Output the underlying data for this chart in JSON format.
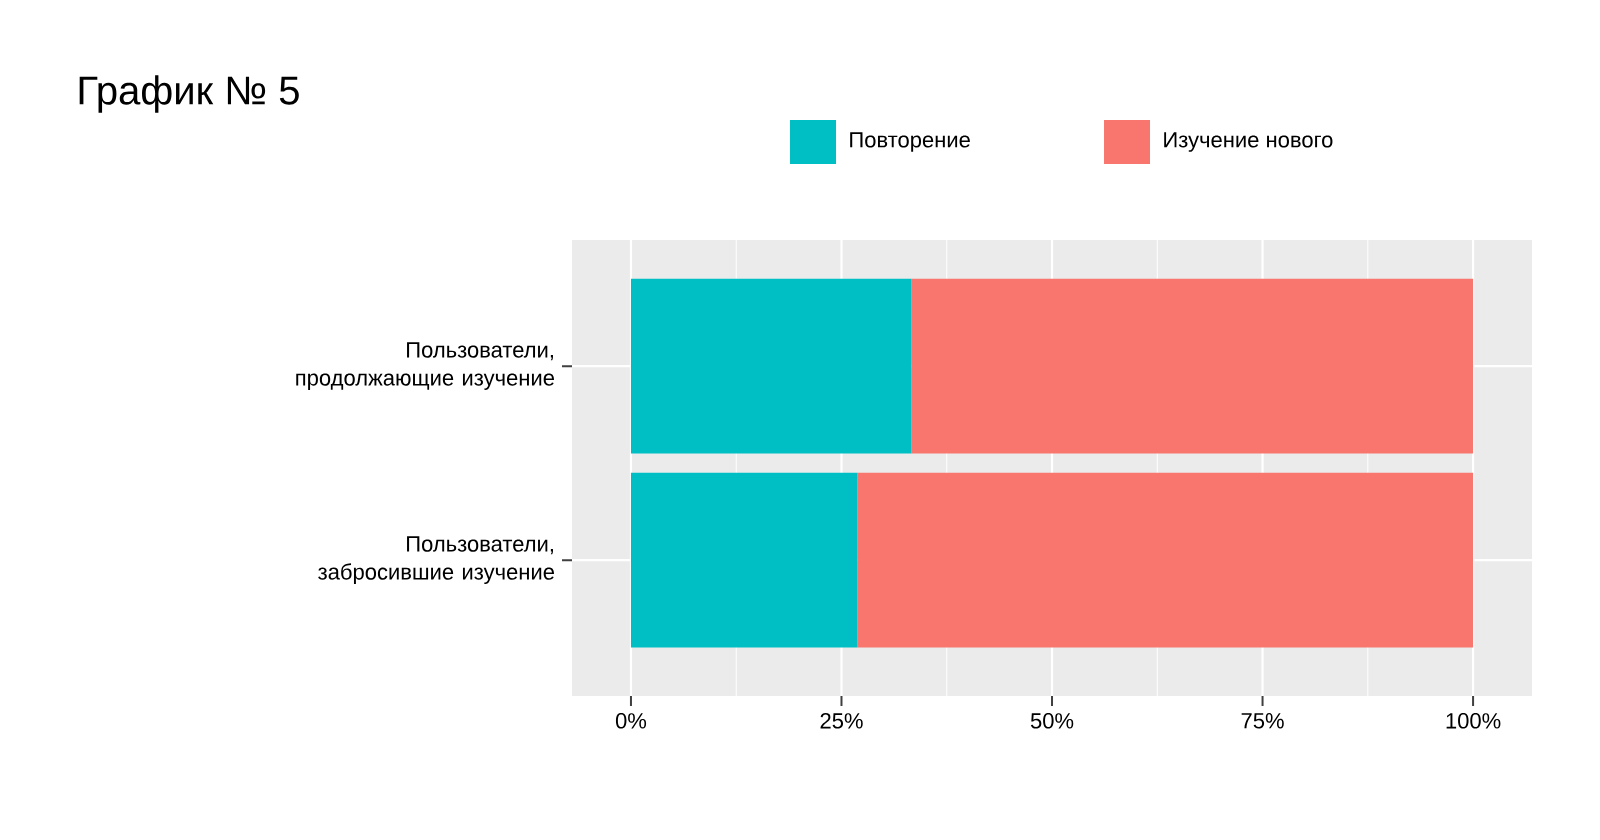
{
  "chart_data": {
    "type": "bar",
    "title": "График № 5",
    "orientation": "horizontal",
    "stacked": true,
    "categories": [
      "Пользователи, продолжающие изучение",
      "Пользователи, забросившие изучение"
    ],
    "series": [
      {
        "name": "Повторение",
        "color": "#00bfc4",
        "values": [
          33.3,
          26.9
        ]
      },
      {
        "name": "Изучение нового",
        "color": "#f8766d",
        "values": [
          66.7,
          73.1
        ]
      }
    ],
    "xlim": [
      -7,
      107
    ],
    "xticks": [
      {
        "value": 0,
        "label": "0%"
      },
      {
        "value": 25,
        "label": "25%"
      },
      {
        "value": 50,
        "label": "50%"
      },
      {
        "value": 75,
        "label": "75%"
      },
      {
        "value": 100,
        "label": "100%"
      }
    ],
    "grid": true,
    "legend": "top"
  }
}
